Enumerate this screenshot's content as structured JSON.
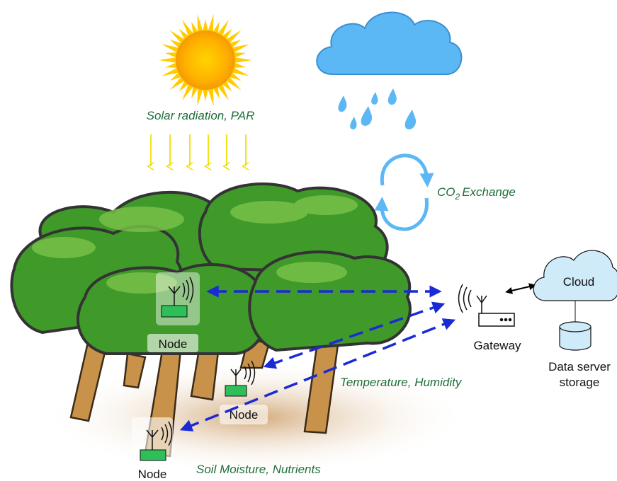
{
  "labels": {
    "solar": "Solar radiation, PAR",
    "co2": {
      "text": "CO",
      "subscript": "2",
      "suffix": "Exchange"
    },
    "temperature": "Temperature, Humidity",
    "soil": "Soil Moisture, Nutrients"
  },
  "nodes": [
    {
      "label": "Node"
    },
    {
      "label": "Node"
    },
    {
      "label": "Node"
    }
  ],
  "gateway": {
    "label": "Gateway"
  },
  "cloud": {
    "label": "Cloud"
  },
  "storage": {
    "lines": [
      "Data server",
      "storage"
    ]
  }
}
